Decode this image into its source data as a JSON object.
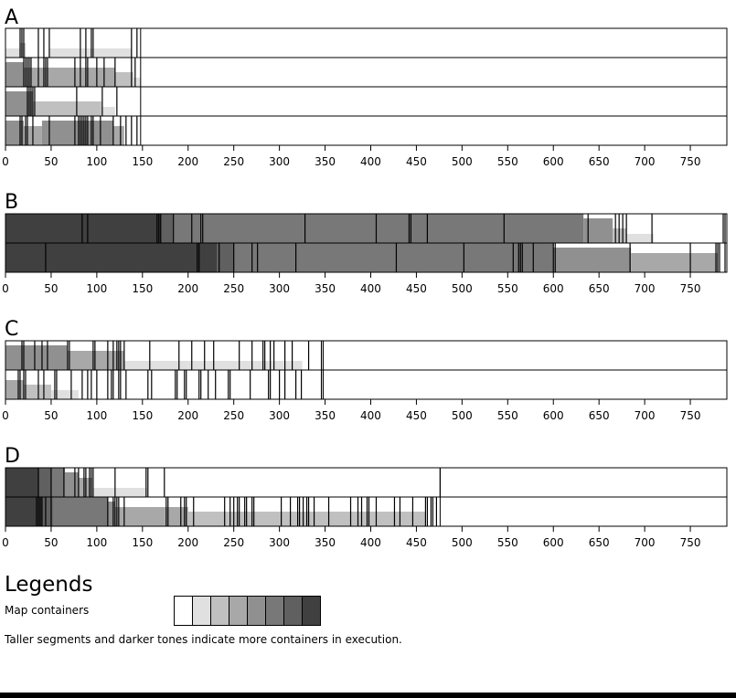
{
  "chart_data": {
    "type": "timeline",
    "xlim": [
      0,
      790
    ],
    "ticks": [
      0,
      50,
      100,
      150,
      200,
      250,
      300,
      350,
      400,
      450,
      500,
      550,
      600,
      650,
      700,
      750
    ],
    "panels": [
      {
        "label": "A",
        "rows": [
          {
            "end": 148,
            "segments": [
              [
                0,
                16,
                1
              ],
              [
                16,
                22,
                2
              ],
              [
                22,
                42,
                0
              ],
              [
                42,
                48,
                0
              ],
              [
                48,
                88,
                1
              ],
              [
                88,
                138,
                1
              ],
              [
                138,
                148,
                0
              ]
            ],
            "markers": [
              16,
              18,
              20,
              36,
              42,
              48,
              82,
              88,
              94,
              96,
              138,
              144
            ]
          },
          {
            "end": 148,
            "segments": [
              [
                0,
                20,
                4
              ],
              [
                20,
                45,
                3
              ],
              [
                45,
                90,
                3
              ],
              [
                90,
                120,
                3
              ],
              [
                120,
                140,
                2
              ],
              [
                140,
                148,
                1
              ]
            ],
            "markers": [
              20,
              22,
              24,
              26,
              28,
              36,
              42,
              44,
              46,
              76,
              82,
              88,
              90,
              100,
              108,
              120,
              138,
              142
            ]
          },
          {
            "end": 148,
            "segments": [
              [
                0,
                30,
                4
              ],
              [
                30,
                105,
                2
              ],
              [
                105,
                120,
                1
              ],
              [
                120,
                148,
                0
              ]
            ],
            "markers": [
              24,
              26,
              28,
              30,
              32,
              78,
              106,
              122
            ]
          },
          {
            "end": 148,
            "segments": [
              [
                0,
                20,
                4
              ],
              [
                20,
                40,
                3
              ],
              [
                40,
                118,
                4
              ],
              [
                118,
                130,
                3
              ],
              [
                130,
                148,
                0
              ]
            ],
            "markers": [
              16,
              18,
              22,
              24,
              30,
              48,
              76,
              80,
              82,
              84,
              86,
              88,
              90,
              94,
              96,
              104,
              118,
              126,
              132,
              138,
              144
            ]
          }
        ]
      },
      {
        "label": "B",
        "rows": [
          {
            "end": 790,
            "segments": [
              [
                0,
                170,
                7
              ],
              [
                170,
                185,
                6
              ],
              [
                185,
                215,
                5
              ],
              [
                215,
                633,
                5
              ],
              [
                633,
                665,
                4
              ],
              [
                665,
                680,
                2
              ],
              [
                680,
                710,
                1
              ],
              [
                710,
                790,
                0
              ]
            ],
            "markers": [
              84,
              90,
              166,
              168,
              170,
              184,
              204,
              214,
              216,
              328,
              406,
              442,
              444,
              462,
              546,
              638,
              668,
              672,
              676,
              680,
              708,
              786,
              788
            ]
          },
          {
            "end": 790,
            "segments": [
              [
                0,
                44,
                8
              ],
              [
                44,
                212,
                8
              ],
              [
                212,
                232,
                7
              ],
              [
                232,
                250,
                6
              ],
              [
                250,
                270,
                5
              ],
              [
                270,
                600,
                5
              ],
              [
                600,
                685,
                4
              ],
              [
                685,
                750,
                3
              ],
              [
                750,
                780,
                3
              ],
              [
                780,
                790,
                0
              ]
            ],
            "markers": [
              44,
              210,
              212,
              234,
              250,
              270,
              276,
              318,
              428,
              502,
              556,
              562,
              564,
              566,
              578,
              600,
              602,
              684,
              750,
              778,
              780,
              782,
              788
            ]
          }
        ]
      },
      {
        "label": "C",
        "rows": [
          {
            "end": 348,
            "segments": [
              [
                0,
                68,
                4
              ],
              [
                68,
                130,
                3
              ],
              [
                130,
                200,
                1
              ],
              [
                200,
                325,
                1
              ],
              [
                325,
                348,
                0
              ]
            ],
            "markers": [
              18,
              20,
              32,
              40,
              46,
              68,
              70,
              96,
              98,
              112,
              118,
              122,
              124,
              126,
              130,
              158,
              190,
              204,
              218,
              228,
              256,
              270,
              282,
              284,
              290,
              294,
              306,
              314,
              332,
              346
            ]
          },
          {
            "end": 348,
            "segments": [
              [
                0,
                20,
                3
              ],
              [
                20,
                50,
                2
              ],
              [
                50,
                80,
                1
              ],
              [
                80,
                130,
                0
              ],
              [
                130,
                325,
                0
              ],
              [
                325,
                348,
                0
              ]
            ],
            "markers": [
              14,
              16,
              20,
              22,
              36,
              42,
              54,
              56,
              72,
              84,
              90,
              94,
              100,
              112,
              116,
              118,
              124,
              126,
              132,
              156,
              160,
              186,
              188,
              196,
              198,
              212,
              214,
              222,
              230,
              244,
              246,
              268,
              288,
              290,
              300,
              306,
              318,
              324,
              346
            ]
          }
        ]
      },
      {
        "label": "D",
        "rows": [
          {
            "end": 476,
            "segments": [
              [
                0,
                36,
                7
              ],
              [
                36,
                50,
                6
              ],
              [
                50,
                65,
                5
              ],
              [
                65,
                80,
                4
              ],
              [
                80,
                95,
                3
              ],
              [
                95,
                120,
                1
              ],
              [
                120,
                155,
                1
              ],
              [
                155,
                175,
                0
              ],
              [
                175,
                476,
                0
              ]
            ],
            "markers": [
              36,
              50,
              64,
              76,
              80,
              86,
              88,
              92,
              94,
              96,
              120,
              154,
              156,
              174,
              476
            ]
          },
          {
            "end": 476,
            "segments": [
              [
                0,
                34,
                8
              ],
              [
                34,
                40,
                7
              ],
              [
                40,
                52,
                6
              ],
              [
                52,
                112,
                5
              ],
              [
                112,
                120,
                4
              ],
              [
                120,
                175,
                3
              ],
              [
                175,
                200,
                3
              ],
              [
                200,
                460,
                2
              ],
              [
                460,
                476,
                0
              ]
            ],
            "markers": [
              34,
              36,
              38,
              40,
              44,
              50,
              112,
              118,
              120,
              122,
              124,
              130,
              176,
              178,
              192,
              196,
              198,
              206,
              240,
              246,
              250,
              254,
              256,
              262,
              264,
              270,
              272,
              302,
              312,
              320,
              322,
              326,
              330,
              332,
              338,
              354,
              378,
              386,
              390,
              396,
              398,
              406,
              426,
              432,
              446,
              460,
              462,
              466,
              468,
              472
            ]
          }
        ]
      }
    ]
  },
  "legend": {
    "title": "Legends",
    "label": "Map containers",
    "shades": [
      "#ffffff",
      "#e0e0e0",
      "#c0c0c0",
      "#a8a8a8",
      "#909090",
      "#787878",
      "#606060",
      "#404040"
    ],
    "note": "Taller segments and darker tones indicate more containers in execution."
  }
}
